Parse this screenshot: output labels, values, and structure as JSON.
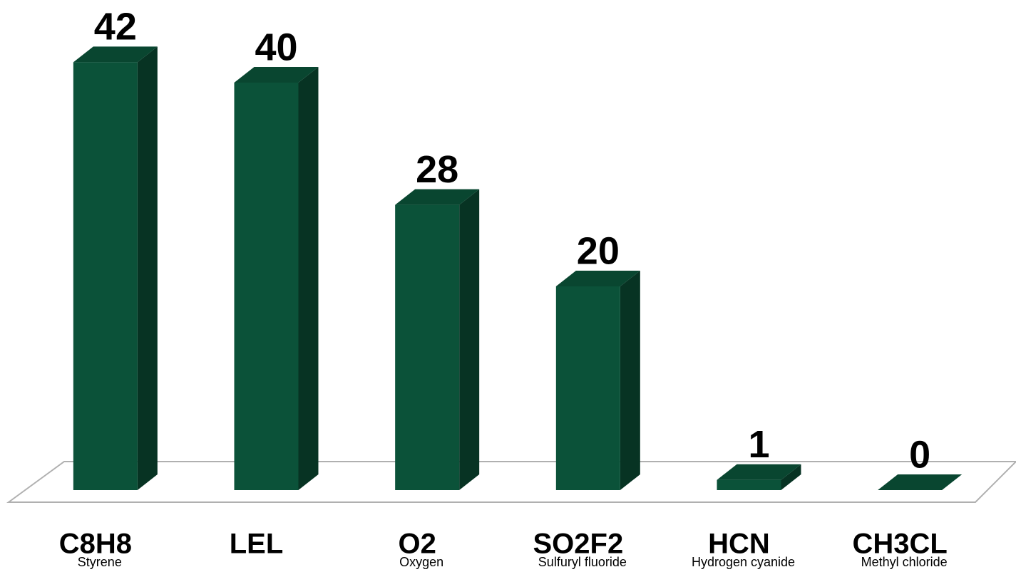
{
  "chart_data": {
    "type": "bar3d",
    "categories": [
      "C8H8",
      "LEL",
      "O2",
      "SO2F2",
      "HCN",
      "CH3CL"
    ],
    "descriptions": [
      "Styrene",
      null,
      "Oxygen",
      "Sulfuryl fluoride",
      "Hydrogen cyanide",
      "Methyl chloride"
    ],
    "values": [
      42,
      40,
      28,
      20,
      1,
      0
    ],
    "color": "#0b5239",
    "ylim": [
      0,
      45
    ]
  }
}
